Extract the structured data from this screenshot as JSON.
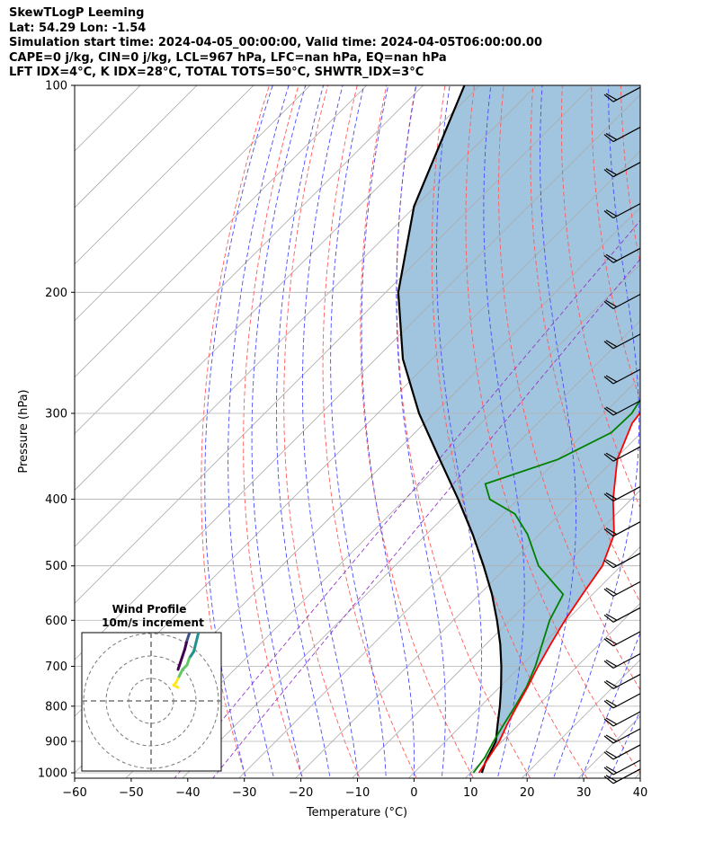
{
  "header": {
    "line1": "SkewTLogP Leeming",
    "line2": "Lat: 54.29   Lon: -1.54",
    "line3": "Simulation start time: 2024-04-05_00:00:00, Valid time: 2024-04-05T06:00:00.00",
    "line4": "CAPE=0 j/kg, CIN=0 j/kg, LCL=967 hPa, LFC=nan hPa, EQ=nan hPa",
    "line5": "LFT IDX=4°C, K IDX=28°C, TOTAL TOTS=50°C, SHWTR_IDX=3°C"
  },
  "chart_data": {
    "type": "skew-t log-p",
    "xlabel": "Temperature (°C)",
    "ylabel": "Pressure (hPa)",
    "xlim": [
      -60,
      40
    ],
    "ylim_hpa": [
      1050,
      100
    ],
    "x_ticks": [
      "−60",
      "−50",
      "−40",
      "−30",
      "−20",
      "−10",
      "0",
      "10",
      "20",
      "30",
      "40"
    ],
    "y_ticks": [
      "100",
      "200",
      "300",
      "400",
      "500",
      "600",
      "700",
      "800",
      "900",
      "1000"
    ],
    "colors": {
      "temperature": "#ff0000",
      "dewpoint": "#008000",
      "parcel": "#000000",
      "cape_fill": "#a2c5df",
      "isotherms": "#aaaaaa",
      "dry_adiabats": "#ff5a5a",
      "moist_adiabats": "#4a4aff",
      "mixing_ratio": "#9438c8"
    },
    "series": [
      {
        "key": "temperature",
        "points": [
          [
            11.5,
            1000
          ],
          [
            10.5,
            950
          ],
          [
            9.5,
            900
          ],
          [
            7.9,
            850
          ],
          [
            6.4,
            800
          ],
          [
            4.9,
            750
          ],
          [
            3.1,
            700
          ],
          [
            1.4,
            650
          ],
          [
            -0.3,
            600
          ],
          [
            -1.8,
            550
          ],
          [
            -3.3,
            500
          ],
          [
            -6.8,
            450
          ],
          [
            -13.2,
            400
          ],
          [
            -19.5,
            350
          ],
          [
            -23.3,
            310
          ],
          [
            -24.9,
            270
          ],
          [
            -23.2,
            245
          ],
          [
            -18.4,
            210
          ],
          [
            -17.0,
            180
          ],
          [
            -15.5,
            155
          ],
          [
            -10.2,
            130
          ],
          [
            -5.5,
            115
          ],
          [
            -3.5,
            100
          ]
        ]
      },
      {
        "key": "dewpoint",
        "points": [
          [
            10.5,
            1000
          ],
          [
            9.8,
            950
          ],
          [
            8.5,
            900
          ],
          [
            7.3,
            850
          ],
          [
            6.1,
            800
          ],
          [
            4.7,
            750
          ],
          [
            2.6,
            700
          ],
          [
            -0.1,
            650
          ],
          [
            -3.0,
            600
          ],
          [
            -5.2,
            550
          ],
          [
            -14.6,
            500
          ],
          [
            -22.1,
            450
          ],
          [
            -28.0,
            420
          ],
          [
            -35.0,
            400
          ],
          [
            -38.5,
            380
          ],
          [
            -30.0,
            350
          ],
          [
            -25.3,
            320
          ],
          [
            -25.1,
            300
          ],
          [
            -27.5,
            265
          ],
          [
            -29.0,
            250
          ],
          [
            -38.6,
            205
          ],
          [
            -42.5,
            185
          ],
          [
            -44.5,
            170
          ],
          [
            -44.2,
            150
          ],
          [
            -45.2,
            120
          ],
          [
            -46.5,
            100
          ]
        ]
      },
      {
        "key": "parcel",
        "points": [
          [
            12.0,
            1000
          ],
          [
            10.8,
            967
          ],
          [
            8.9,
            900
          ],
          [
            6.2,
            850
          ],
          [
            3.4,
            800
          ],
          [
            0.2,
            750
          ],
          [
            -3.4,
            700
          ],
          [
            -7.5,
            650
          ],
          [
            -12.3,
            600
          ],
          [
            -17.8,
            550
          ],
          [
            -24.3,
            500
          ],
          [
            -31.8,
            450
          ],
          [
            -40.6,
            400
          ],
          [
            -50.9,
            350
          ],
          [
            -62.7,
            300
          ],
          [
            -75.2,
            250
          ],
          [
            -87.8,
            200
          ],
          [
            -100.2,
            150
          ],
          [
            -112.7,
            100
          ]
        ]
      }
    ],
    "wind_barbs_hpa": [
      1030,
      1000,
      950,
      900,
      850,
      800,
      750,
      700,
      650,
      600,
      550,
      500,
      450,
      400,
      350,
      300,
      270,
      240,
      210,
      180,
      155,
      135,
      120,
      105
    ],
    "hodograph": {
      "title": "Wind Profile",
      "subtitle": "10m/s increment",
      "rings_ms": [
        10,
        20,
        30
      ],
      "points": [
        [
          12,
          2
        ],
        [
          13,
          5
        ],
        [
          14,
          8
        ],
        [
          15,
          11
        ],
        [
          16,
          15
        ],
        [
          17,
          18
        ],
        [
          18,
          21
        ],
        [
          19,
          22
        ],
        [
          20,
          21
        ],
        [
          21,
          18
        ],
        [
          20,
          14
        ],
        [
          19,
          10
        ],
        [
          17,
          7
        ],
        [
          16,
          4
        ],
        [
          14,
          2
        ],
        [
          13,
          0
        ],
        [
          12,
          -2
        ],
        [
          11,
          -4
        ],
        [
          10,
          -5
        ],
        [
          12,
          -6
        ]
      ]
    }
  }
}
